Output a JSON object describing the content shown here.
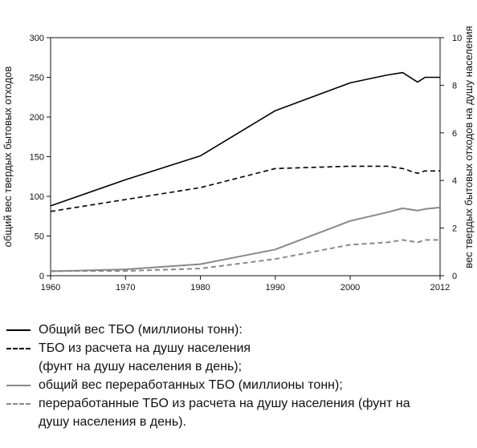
{
  "chart_data": {
    "type": "line",
    "x_ticks": [
      1960,
      1970,
      1980,
      1990,
      2000,
      2012
    ],
    "x_range": [
      1960,
      2012
    ],
    "y_left": {
      "label": "общий вес твердых бытовых отходов",
      "range": [
        0,
        300
      ],
      "ticks": [
        0,
        50,
        100,
        150,
        200,
        250,
        300
      ]
    },
    "y_right": {
      "label": "вес твердых бытовых отходов на душу населения",
      "range": [
        0,
        10
      ],
      "ticks": [
        0,
        2,
        4,
        6,
        8,
        10
      ]
    },
    "grid": false,
    "legend_position": "bottom",
    "series": [
      {
        "name": "Общий вес ТБО (миллионы тонн):",
        "axis": "left",
        "style": "solid",
        "color": "#000000",
        "points": [
          [
            1960,
            88
          ],
          [
            1970,
            121
          ],
          [
            1980,
            151
          ],
          [
            1990,
            208
          ],
          [
            2000,
            243
          ],
          [
            2005,
            253
          ],
          [
            2007,
            256
          ],
          [
            2009,
            244
          ],
          [
            2010,
            250
          ],
          [
            2012,
            250
          ]
        ]
      },
      {
        "name": "ТБО из расчета на душу населения (фунт на душу населения в день);",
        "axis": "right",
        "style": "dashed",
        "color": "#000000",
        "points": [
          [
            1960,
            2.7
          ],
          [
            1970,
            3.2
          ],
          [
            1980,
            3.7
          ],
          [
            1990,
            4.5
          ],
          [
            2000,
            4.6
          ],
          [
            2005,
            4.6
          ],
          [
            2007,
            4.5
          ],
          [
            2009,
            4.3
          ],
          [
            2010,
            4.4
          ],
          [
            2012,
            4.4
          ]
        ]
      },
      {
        "name": "общий вес переработанных ТБО (миллионы тонн);",
        "axis": "left",
        "style": "solid",
        "color": "#888888",
        "points": [
          [
            1960,
            5.6
          ],
          [
            1970,
            8
          ],
          [
            1980,
            14.5
          ],
          [
            1990,
            33
          ],
          [
            2000,
            69
          ],
          [
            2005,
            80
          ],
          [
            2007,
            85
          ],
          [
            2009,
            82
          ],
          [
            2010,
            84
          ],
          [
            2012,
            86
          ]
        ]
      },
      {
        "name": "переработанные ТБО из расчета на душу населения (фунт на душу населения в день).",
        "axis": "right",
        "style": "dashed",
        "color": "#888888",
        "points": [
          [
            1960,
            0.2
          ],
          [
            1970,
            0.2
          ],
          [
            1980,
            0.3
          ],
          [
            1990,
            0.7
          ],
          [
            2000,
            1.3
          ],
          [
            2005,
            1.4
          ],
          [
            2007,
            1.5
          ],
          [
            2009,
            1.4
          ],
          [
            2010,
            1.5
          ],
          [
            2012,
            1.5
          ]
        ]
      }
    ]
  },
  "legend": {
    "items": [
      {
        "lines": [
          "Общий вес ТБО (миллионы тонн):"
        ],
        "style": "solid",
        "color": "#000000"
      },
      {
        "lines": [
          "ТБО из расчета на душу населения",
          "(фунт на душу населения в день);"
        ],
        "style": "dashed",
        "color": "#000000"
      },
      {
        "lines": [
          "общий вес переработанных ТБО (миллионы тонн);"
        ],
        "style": "solid",
        "color": "#888888"
      },
      {
        "lines": [
          "переработанные ТБО из расчета на душу населения (фунт на",
          "душу населения в день)."
        ],
        "style": "dashed",
        "color": "#888888"
      }
    ]
  }
}
